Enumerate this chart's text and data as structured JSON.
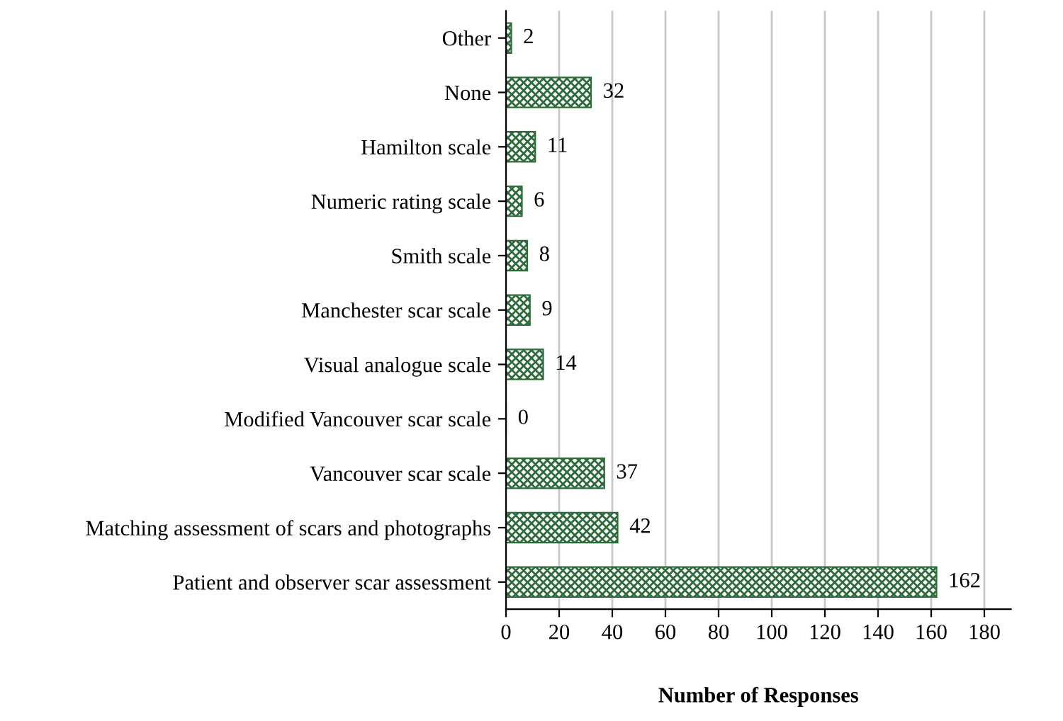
{
  "chart_data": {
    "type": "bar",
    "orientation": "horizontal",
    "xlabel": "Number of Responses",
    "categories": [
      "Other",
      "None",
      "Hamilton scale",
      "Numeric rating scale",
      "Smith scale",
      "Manchester scar scale",
      "Visual analogue scale",
      "Modified Vancouver scar scale",
      "Vancouver scar scale",
      "Matching assessment of scars and photographs",
      "Patient and observer scar assessment"
    ],
    "values": [
      2,
      32,
      11,
      6,
      8,
      9,
      14,
      0,
      37,
      42,
      162
    ],
    "color": "#2e6b3a",
    "xlim": [
      0,
      190
    ],
    "xticks": [
      0,
      20,
      40,
      60,
      80,
      100,
      120,
      140,
      160,
      180
    ],
    "grid": "x",
    "data_labels": true
  }
}
